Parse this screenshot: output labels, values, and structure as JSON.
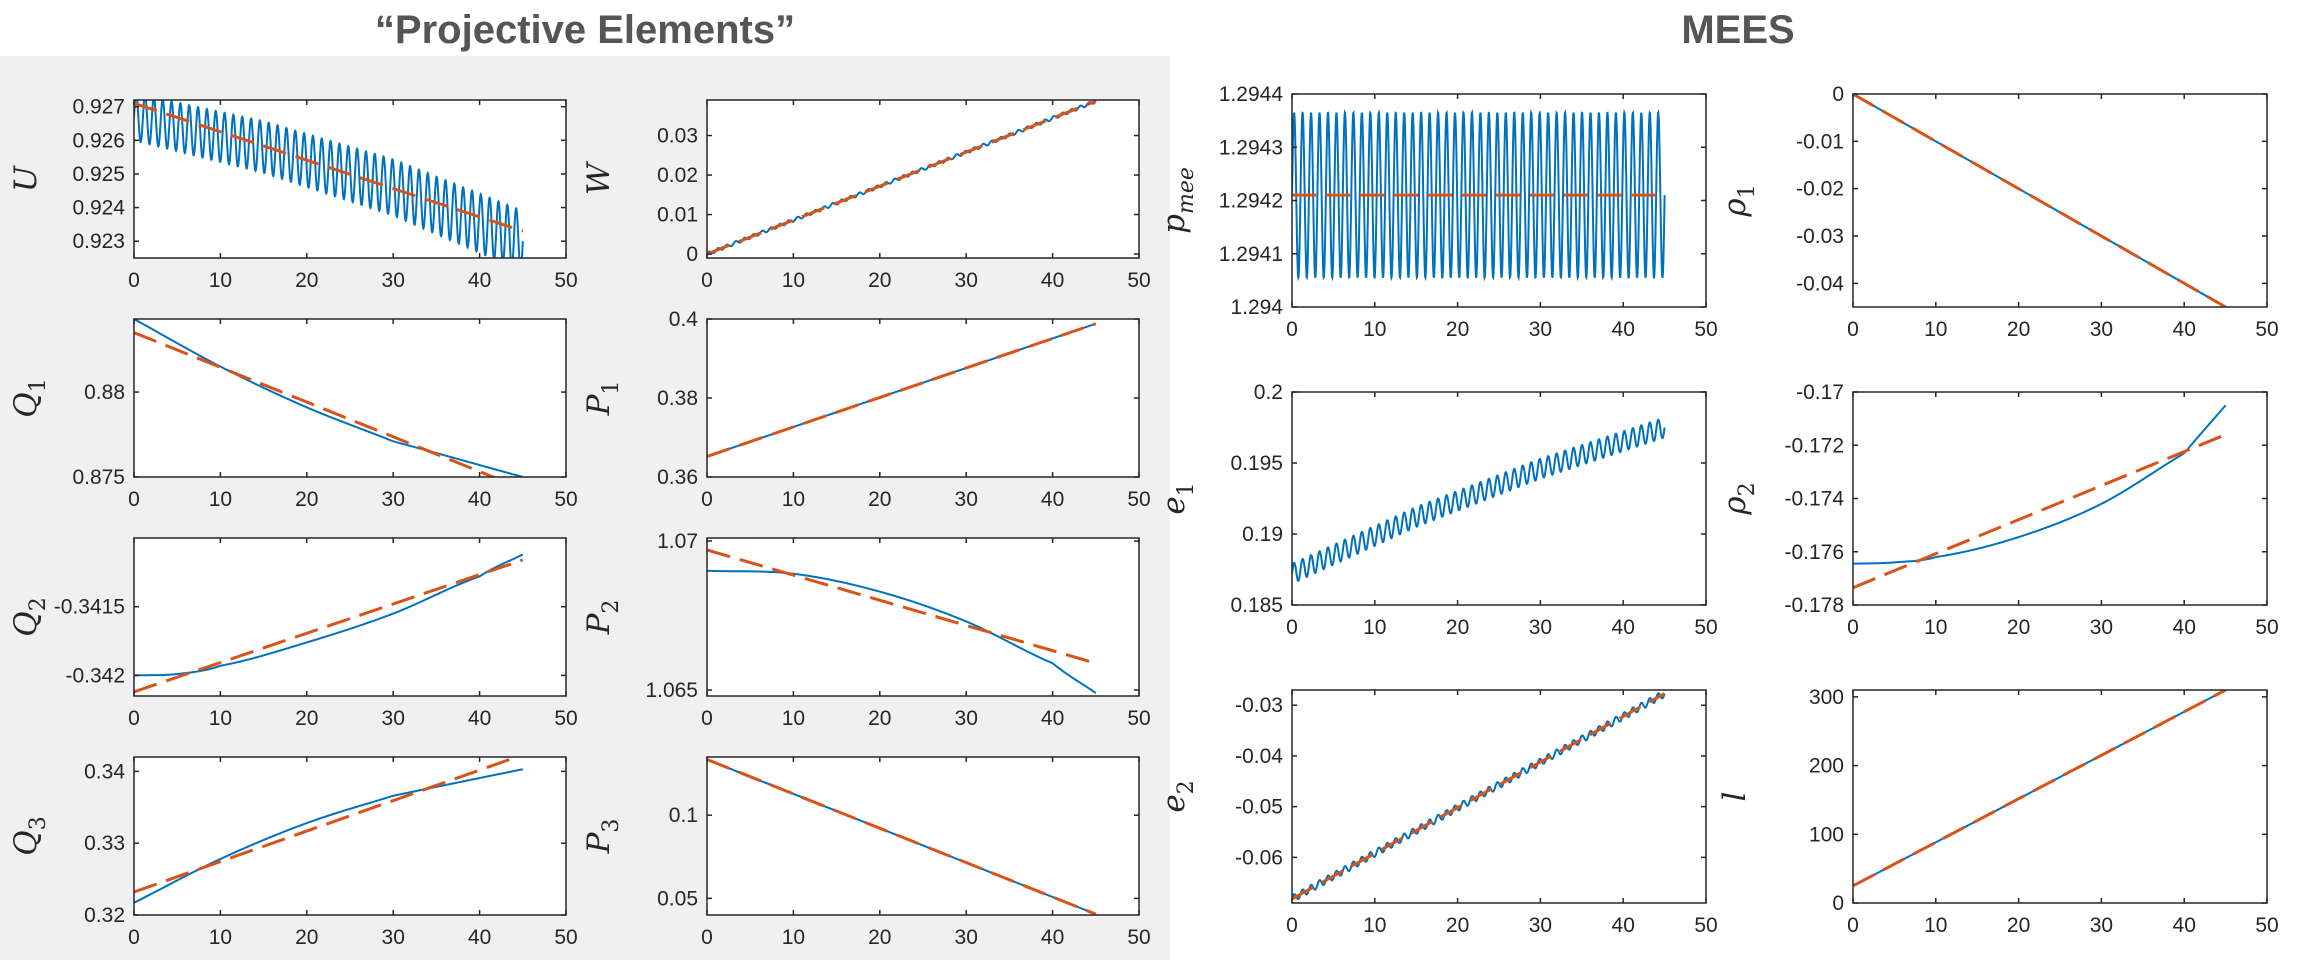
{
  "groups": [
    {
      "title": "“Projective Elements”"
    },
    {
      "title": "MEES"
    }
  ],
  "colors": {
    "osculating": "#0072BD",
    "mean": "#D95319",
    "axis": "#262626",
    "left_panel_bg": "#f0f0f0"
  },
  "chart_data": [
    {
      "type": "line",
      "ylabel_base": "U",
      "ylabel_sub": "",
      "xlim": [
        0,
        50
      ],
      "ylim": [
        0.9225,
        0.9272
      ],
      "xticks": [
        0,
        10,
        20,
        30,
        40,
        50
      ],
      "yticks": [
        0.923,
        0.924,
        0.925,
        0.926,
        0.927
      ],
      "yticklabels": [
        "0.923",
        "0.924",
        "0.925",
        "0.926",
        "0.927"
      ],
      "series": [
        {
          "style": "oscillating",
          "x_end": 45,
          "trend": [
            [
              0,
              0.9267
            ],
            [
              15,
              0.9258
            ],
            [
              30,
              0.9246
            ],
            [
              45,
              0.923
            ]
          ],
          "amplitude": [
            [
              0,
              0.0007
            ],
            [
              45,
              0.0009
            ]
          ],
          "cycles": 44
        },
        {
          "style": "dashed",
          "points": [
            [
              0,
              0.9271
            ],
            [
              45,
              0.9233
            ]
          ]
        }
      ]
    },
    {
      "type": "line",
      "ylabel_base": "W",
      "ylabel_sub": "",
      "xlim": [
        0,
        50
      ],
      "ylim": [
        -0.001,
        0.039
      ],
      "xticks": [
        0,
        10,
        20,
        30,
        40,
        50
      ],
      "yticks": [
        0,
        0.01,
        0.02,
        0.03
      ],
      "yticklabels": [
        "0",
        "0.01",
        "0.02",
        "0.03"
      ],
      "series": [
        {
          "style": "oscillating",
          "x_end": 45,
          "trend": [
            [
              0,
              0.0
            ],
            [
              45,
              0.0387
            ]
          ],
          "amplitude": [
            [
              0,
              0.0004
            ],
            [
              45,
              0.0004
            ]
          ],
          "cycles": 44
        },
        {
          "style": "dashed",
          "points": [
            [
              0,
              0.0
            ],
            [
              45,
              0.0387
            ]
          ]
        }
      ]
    },
    {
      "type": "line",
      "ylabel_base": "Q",
      "ylabel_sub": "1",
      "xlim": [
        0,
        50
      ],
      "ylim": [
        0.875,
        0.8843
      ],
      "xticks": [
        0,
        10,
        20,
        30,
        40,
        50
      ],
      "yticks": [
        0.875,
        0.88
      ],
      "yticklabels": [
        "0.875",
        "0.88"
      ],
      "series": [
        {
          "style": "solid",
          "points": [
            [
              0,
              0.8843
            ],
            [
              10,
              0.8815
            ],
            [
              20,
              0.8791
            ],
            [
              30,
              0.8771
            ],
            [
              45,
              0.875
            ]
          ]
        },
        {
          "style": "dashed",
          "points": [
            [
              0,
              0.8835
            ],
            [
              45,
              0.8743
            ]
          ]
        }
      ]
    },
    {
      "type": "line",
      "ylabel_base": "P",
      "ylabel_sub": "1",
      "xlim": [
        0,
        50
      ],
      "ylim": [
        0.36,
        0.4
      ],
      "xticks": [
        0,
        10,
        20,
        30,
        40,
        50
      ],
      "yticks": [
        0.36,
        0.38,
        0.4
      ],
      "yticklabels": [
        "0.36",
        "0.38",
        "0.4"
      ],
      "series": [
        {
          "style": "solid",
          "points": [
            [
              0,
              0.3652
            ],
            [
              45,
              0.3988
            ]
          ]
        },
        {
          "style": "dashed",
          "points": [
            [
              0,
              0.3652
            ],
            [
              45,
              0.3988
            ]
          ]
        }
      ]
    },
    {
      "type": "line",
      "ylabel_base": "Q",
      "ylabel_sub": "2",
      "xlim": [
        0,
        50
      ],
      "ylim": [
        -0.34215,
        -0.341
      ],
      "xticks": [
        0,
        10,
        20,
        30,
        40,
        50
      ],
      "yticks": [
        -0.342,
        -0.3415
      ],
      "yticklabels": [
        "-0.342",
        "-0.3415"
      ],
      "series": [
        {
          "style": "solid",
          "points": [
            [
              0,
              -0.342
            ],
            [
              5,
              -0.34199
            ],
            [
              10,
              -0.34193
            ],
            [
              20,
              -0.34176
            ],
            [
              30,
              -0.34155
            ],
            [
              40,
              -0.34128
            ],
            [
              45,
              -0.34112
            ]
          ]
        },
        {
          "style": "dashed",
          "points": [
            [
              0,
              -0.34212
            ],
            [
              45,
              -0.34116
            ]
          ]
        }
      ]
    },
    {
      "type": "line",
      "ylabel_base": "P",
      "ylabel_sub": "2",
      "xlim": [
        0,
        50
      ],
      "ylim": [
        1.0648,
        1.0701
      ],
      "xticks": [
        0,
        10,
        20,
        30,
        40,
        50
      ],
      "yticks": [
        1.065,
        1.07
      ],
      "yticklabels": [
        "1.065",
        "1.07"
      ],
      "series": [
        {
          "style": "solid",
          "points": [
            [
              0,
              1.069
            ],
            [
              10,
              1.0689
            ],
            [
              20,
              1.0683
            ],
            [
              30,
              1.0673
            ],
            [
              40,
              1.0659
            ],
            [
              45,
              1.0649
            ]
          ]
        },
        {
          "style": "dashed",
          "points": [
            [
              0,
              1.0697
            ],
            [
              45,
              1.0659
            ]
          ]
        }
      ]
    },
    {
      "type": "line",
      "ylabel_base": "Q",
      "ylabel_sub": "3",
      "xlim": [
        0,
        50
      ],
      "ylim": [
        0.32,
        0.342
      ],
      "xticks": [
        0,
        10,
        20,
        30,
        40,
        50
      ],
      "yticks": [
        0.32,
        0.33,
        0.34
      ],
      "yticklabels": [
        "0.32",
        "0.33",
        "0.34"
      ],
      "series": [
        {
          "style": "solid",
          "points": [
            [
              0,
              0.3217
            ],
            [
              10,
              0.3278
            ],
            [
              20,
              0.3328
            ],
            [
              30,
              0.3366
            ],
            [
              45,
              0.3403
            ]
          ]
        },
        {
          "style": "dashed",
          "points": [
            [
              0,
              0.3232
            ],
            [
              45,
              0.3423
            ]
          ]
        }
      ]
    },
    {
      "type": "line",
      "ylabel_base": "P",
      "ylabel_sub": "3",
      "xlim": [
        0,
        50
      ],
      "ylim": [
        0.04,
        0.135
      ],
      "xticks": [
        0,
        10,
        20,
        30,
        40,
        50
      ],
      "yticks": [
        0.05,
        0.1
      ],
      "yticklabels": [
        "0.05",
        "0.1"
      ],
      "series": [
        {
          "style": "solid",
          "points": [
            [
              0,
              0.1335
            ],
            [
              45,
              0.0405
            ]
          ]
        },
        {
          "style": "dashed",
          "points": [
            [
              0,
              0.1335
            ],
            [
              45,
              0.0405
            ]
          ]
        }
      ]
    },
    {
      "type": "line",
      "ylabel_base": "p",
      "ylabel_sub": "mee",
      "xlim": [
        0,
        50
      ],
      "ylim": [
        1.294,
        1.2944
      ],
      "xticks": [
        0,
        10,
        20,
        30,
        40,
        50
      ],
      "yticks": [
        1.294,
        1.2941,
        1.2942,
        1.2943,
        1.2944
      ],
      "yticklabels": [
        "1.294",
        "1.2941",
        "1.2942",
        "1.2943",
        "1.2944"
      ],
      "series": [
        {
          "style": "oscillating",
          "x_end": 45,
          "trend": [
            [
              0,
              1.29421
            ],
            [
              45,
              1.29421
            ]
          ],
          "amplitude": [
            [
              0,
              0.000155
            ],
            [
              45,
              0.000155
            ]
          ],
          "cycles": 44
        },
        {
          "style": "dashed",
          "points": [
            [
              0,
              1.29421
            ],
            [
              45,
              1.29421
            ]
          ]
        }
      ]
    },
    {
      "type": "line",
      "ylabel_base": "ρ",
      "ylabel_sub": "1",
      "xlim": [
        0,
        50
      ],
      "ylim": [
        -0.045,
        0
      ],
      "xticks": [
        0,
        10,
        20,
        30,
        40,
        50
      ],
      "yticks": [
        -0.04,
        -0.03,
        -0.02,
        -0.01,
        0
      ],
      "yticklabels": [
        "-0.04",
        "-0.03",
        "-0.02",
        "-0.01",
        "0"
      ],
      "series": [
        {
          "style": "solid",
          "points": [
            [
              0,
              0.0
            ],
            [
              45,
              -0.045
            ]
          ]
        },
        {
          "style": "dashed",
          "points": [
            [
              0,
              0.0
            ],
            [
              45,
              -0.045
            ]
          ]
        }
      ]
    },
    {
      "type": "line",
      "ylabel_base": "e",
      "ylabel_sub": "1",
      "xlim": [
        0,
        50
      ],
      "ylim": [
        0.185,
        0.2
      ],
      "xticks": [
        0,
        10,
        20,
        30,
        40,
        50
      ],
      "yticks": [
        0.185,
        0.19,
        0.195,
        0.2
      ],
      "yticklabels": [
        "0.185",
        "0.19",
        "0.195",
        "0.2"
      ],
      "series": [
        {
          "style": "oscillating",
          "x_end": 45,
          "trend": [
            [
              0,
              0.1872
            ],
            [
              15,
              0.1912
            ],
            [
              30,
              0.1946
            ],
            [
              45,
              0.1975
            ]
          ],
          "amplitude": [
            [
              0,
              0.0007
            ],
            [
              45,
              0.0007
            ]
          ],
          "cycles": 44
        }
      ]
    },
    {
      "type": "line",
      "ylabel_base": "ρ",
      "ylabel_sub": "2",
      "xlim": [
        0,
        50
      ],
      "ylim": [
        -0.178,
        -0.17
      ],
      "xticks": [
        0,
        10,
        20,
        30,
        40,
        50
      ],
      "yticks": [
        -0.178,
        -0.176,
        -0.174,
        -0.172,
        -0.17
      ],
      "yticklabels": [
        "-0.178",
        "-0.176",
        "-0.174",
        "-0.172",
        "-0.17"
      ],
      "series": [
        {
          "style": "solid",
          "points": [
            [
              0,
              -0.17645
            ],
            [
              5,
              -0.1764
            ],
            [
              10,
              -0.1762
            ],
            [
              20,
              -0.17545
            ],
            [
              30,
              -0.1742
            ],
            [
              40,
              -0.1723
            ],
            [
              45,
              -0.1705
            ]
          ]
        },
        {
          "style": "dashed",
          "points": [
            [
              0,
              -0.17735
            ],
            [
              45,
              -0.1716
            ]
          ]
        }
      ]
    },
    {
      "type": "line",
      "ylabel_base": "e",
      "ylabel_sub": "2",
      "xlim": [
        0,
        50
      ],
      "ylim": [
        -0.069,
        -0.027
      ],
      "xticks": [
        0,
        10,
        20,
        30,
        40,
        50
      ],
      "yticks": [
        -0.06,
        -0.05,
        -0.04,
        -0.03
      ],
      "yticklabels": [
        "-0.06",
        "-0.05",
        "-0.04",
        "-0.03"
      ],
      "series": [
        {
          "style": "oscillating",
          "x_end": 45,
          "trend": [
            [
              0,
              -0.0682
            ],
            [
              45,
              -0.0277
            ]
          ],
          "amplitude": [
            [
              0,
              0.0007
            ],
            [
              45,
              0.0007
            ]
          ],
          "cycles": 44
        },
        {
          "style": "dashed",
          "points": [
            [
              0,
              -0.0682
            ],
            [
              45,
              -0.0277
            ]
          ]
        }
      ]
    },
    {
      "type": "line",
      "ylabel_base": "l",
      "ylabel_sub": "",
      "xlim": [
        0,
        50
      ],
      "ylim": [
        0,
        310
      ],
      "xticks": [
        0,
        10,
        20,
        30,
        40,
        50
      ],
      "yticks": [
        0,
        100,
        200,
        300
      ],
      "yticklabels": [
        "0",
        "100",
        "200",
        "300"
      ],
      "series": [
        {
          "style": "solid",
          "points": [
            [
              0,
              25
            ],
            [
              45,
              310
            ]
          ]
        },
        {
          "style": "dashed",
          "points": [
            [
              0,
              25
            ],
            [
              45,
              310
            ]
          ]
        }
      ]
    }
  ]
}
